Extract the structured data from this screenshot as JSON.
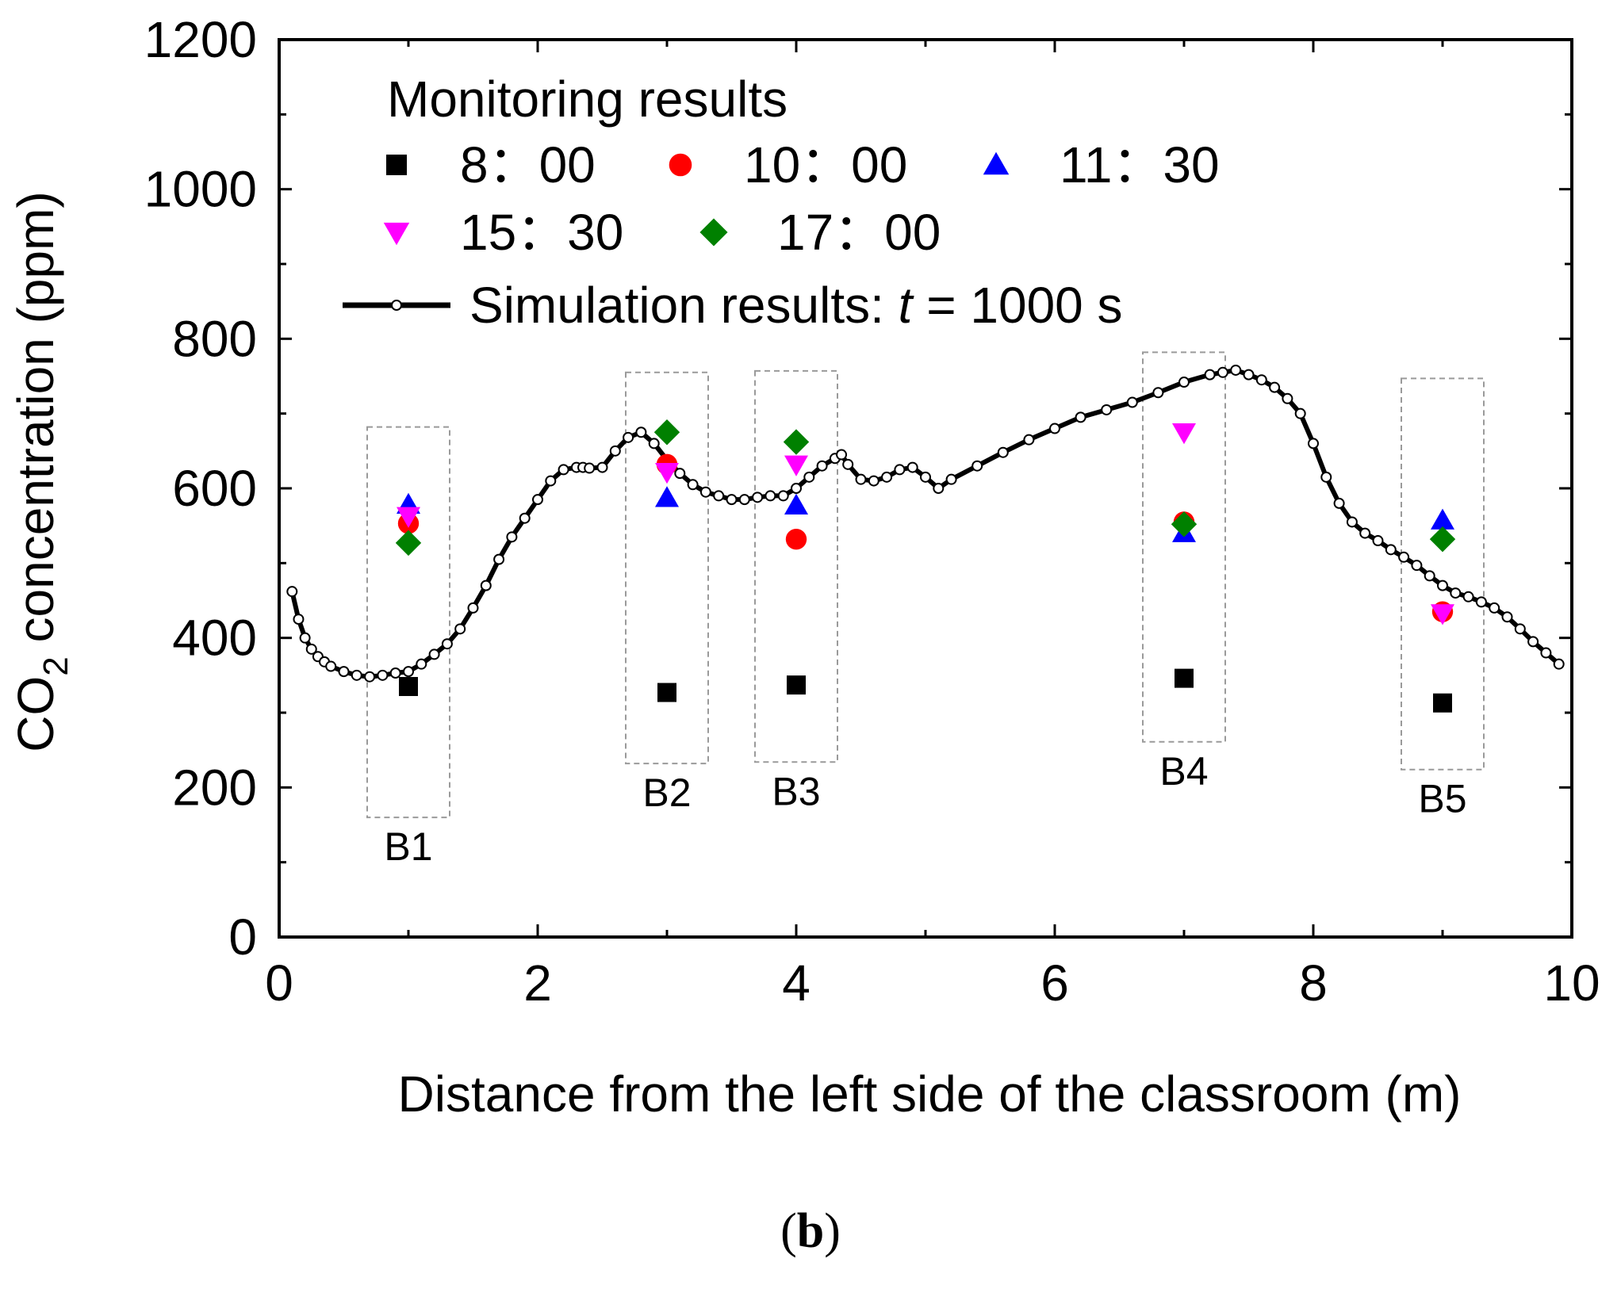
{
  "chart_data": {
    "type": "scatter",
    "xlabel": "Distance from the left side of the classroom (m)",
    "ylabel": {
      "prefix": "CO",
      "sub": "2",
      "suffix": " concentration (ppm)"
    },
    "xlim": [
      0,
      10
    ],
    "ylim": [
      0,
      1200
    ],
    "xticks": [
      0,
      2,
      4,
      6,
      8,
      10
    ],
    "yticks": [
      0,
      200,
      400,
      600,
      800,
      1000,
      1200
    ],
    "grid": false,
    "legend": {
      "placement": "top-left",
      "title": "Monitoring results",
      "simulation_label_prefix": "Simulation results: ",
      "simulation_label_var": "t",
      "simulation_label_suffix": " = 1000 s"
    },
    "series": [
      {
        "name": "8：00",
        "marker": "square",
        "color": "#000000",
        "x": [
          1,
          3,
          4,
          7,
          9
        ],
        "y": [
          335,
          327,
          337,
          346,
          313
        ]
      },
      {
        "name": "10：00",
        "marker": "circle",
        "color": "#ff0000",
        "x": [
          1,
          3,
          4,
          7,
          9
        ],
        "y": [
          553,
          632,
          532,
          555,
          435
        ]
      },
      {
        "name": "11：30",
        "marker": "triangle-up",
        "color": "#0000ff",
        "x": [
          1,
          3,
          4,
          7,
          9
        ],
        "y": [
          578,
          587,
          577,
          540,
          557
        ]
      },
      {
        "name": "15：30",
        "marker": "triangle-down",
        "color": "#ff00ff",
        "x": [
          1,
          3,
          4,
          7,
          9
        ],
        "y": [
          563,
          622,
          632,
          675,
          433
        ]
      },
      {
        "name": "17：00",
        "marker": "diamond",
        "color": "#008000",
        "x": [
          1,
          3,
          4,
          7,
          9
        ],
        "y": [
          527,
          675,
          662,
          552,
          532
        ]
      }
    ],
    "simulation": {
      "name": "Simulation results: t = 1000 s",
      "color": "#000000",
      "x": [
        0.1,
        0.15,
        0.2,
        0.25,
        0.3,
        0.35,
        0.4,
        0.5,
        0.6,
        0.7,
        0.8,
        0.9,
        1.0,
        1.1,
        1.2,
        1.3,
        1.4,
        1.5,
        1.6,
        1.7,
        1.8,
        1.9,
        2.0,
        2.1,
        2.2,
        2.3,
        2.35,
        2.4,
        2.5,
        2.6,
        2.7,
        2.8,
        2.9,
        3.0,
        3.1,
        3.2,
        3.3,
        3.4,
        3.5,
        3.6,
        3.7,
        3.8,
        3.9,
        4.0,
        4.1,
        4.2,
        4.3,
        4.35,
        4.4,
        4.5,
        4.6,
        4.7,
        4.8,
        4.9,
        5.0,
        5.1,
        5.2,
        5.4,
        5.6,
        5.8,
        6.0,
        6.2,
        6.4,
        6.6,
        6.8,
        7.0,
        7.2,
        7.3,
        7.4,
        7.5,
        7.6,
        7.7,
        7.8,
        7.9,
        8.0,
        8.1,
        8.2,
        8.3,
        8.4,
        8.5,
        8.6,
        8.7,
        8.8,
        8.9,
        9.0,
        9.1,
        9.2,
        9.3,
        9.4,
        9.5,
        9.6,
        9.7,
        9.8,
        9.9
      ],
      "y": [
        462,
        425,
        400,
        385,
        375,
        368,
        362,
        355,
        350,
        348,
        350,
        353,
        355,
        365,
        378,
        392,
        412,
        440,
        470,
        505,
        535,
        560,
        585,
        610,
        625,
        628,
        628,
        627,
        628,
        650,
        668,
        675,
        660,
        638,
        620,
        605,
        595,
        590,
        585,
        585,
        588,
        590,
        590,
        600,
        615,
        630,
        640,
        645,
        632,
        612,
        610,
        615,
        625,
        628,
        615,
        600,
        612,
        630,
        648,
        665,
        680,
        695,
        705,
        715,
        728,
        742,
        752,
        755,
        758,
        752,
        745,
        735,
        720,
        700,
        660,
        615,
        580,
        555,
        540,
        530,
        518,
        508,
        497,
        483,
        470,
        460,
        455,
        448,
        440,
        428,
        412,
        395,
        380,
        365
      ]
    },
    "regions": [
      {
        "label": "B1",
        "x_center": 1,
        "y_low": 160,
        "y_high": 682
      },
      {
        "label": "B2",
        "x_center": 3,
        "y_low": 232,
        "y_high": 755
      },
      {
        "label": "B3",
        "x_center": 4,
        "y_low": 234,
        "y_high": 757
      },
      {
        "label": "B4",
        "x_center": 7,
        "y_low": 261,
        "y_high": 782
      },
      {
        "label": "B5",
        "x_center": 9,
        "y_low": 224,
        "y_high": 747
      }
    ]
  },
  "panel_label": "b",
  "panel_label_open": "(",
  "panel_label_close": ")"
}
